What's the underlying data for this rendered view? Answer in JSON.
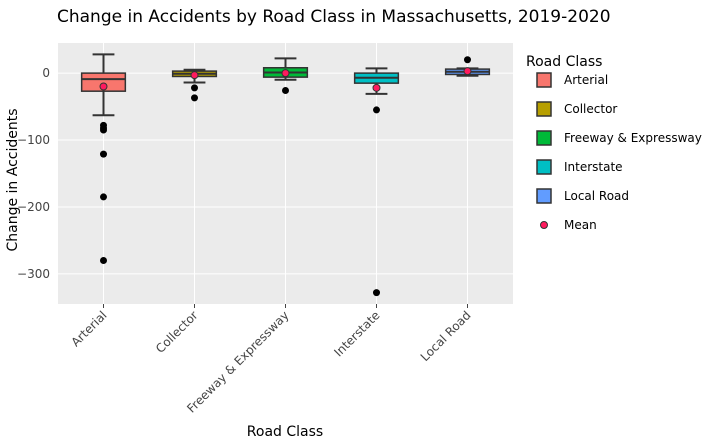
{
  "chart_data": {
    "type": "box",
    "title": "Change in Accidents by Road Class in Massachusetts, 2019-2020",
    "xlabel": "Road Class",
    "ylabel": "Change in Accidents",
    "ylim": [
      -345,
      45
    ],
    "yticks": [
      0,
      -100,
      -200,
      -300
    ],
    "ytick_labels": [
      "0",
      "−100",
      "−200",
      "−300"
    ],
    "grid": true,
    "legend": {
      "title": "Road Class",
      "placement": "right",
      "items": [
        "Arterial",
        "Collector",
        "Freeway & Expressway",
        "Interstate",
        "Local Road",
        "Mean"
      ]
    },
    "categories": [
      "Arterial",
      "Collector",
      "Freeway & Expressway",
      "Interstate",
      "Local Road"
    ],
    "colors": [
      "#f8766d",
      "#b79f00",
      "#00ba38",
      "#00bfc4",
      "#619cff"
    ],
    "mean_color": "#ff1a5e",
    "boxes": [
      {
        "name": "Arterial",
        "min": -63,
        "q1": -27,
        "median": -9,
        "q3": 0,
        "max": 28,
        "mean": -20,
        "outliers": [
          -78,
          -82,
          -85,
          -121,
          -185,
          -280
        ]
      },
      {
        "name": "Collector",
        "min": -14,
        "q1": -5,
        "median": -1,
        "q3": 3,
        "max": 5,
        "mean": -3,
        "outliers": [
          -22,
          -37
        ]
      },
      {
        "name": "Freeway & Expressway",
        "min": -10,
        "q1": -6,
        "median": 1,
        "q3": 8,
        "max": 22,
        "mean": 0,
        "outliers": [
          -26
        ]
      },
      {
        "name": "Interstate",
        "min": -31,
        "q1": -15,
        "median": -7,
        "q3": 0,
        "max": 7,
        "mean": -22,
        "outliers": [
          -55,
          -328
        ]
      },
      {
        "name": "Local Road",
        "min": -4,
        "q1": -2,
        "median": 2,
        "q3": 6,
        "max": 7,
        "mean": 3,
        "outliers": [
          20
        ]
      }
    ]
  }
}
